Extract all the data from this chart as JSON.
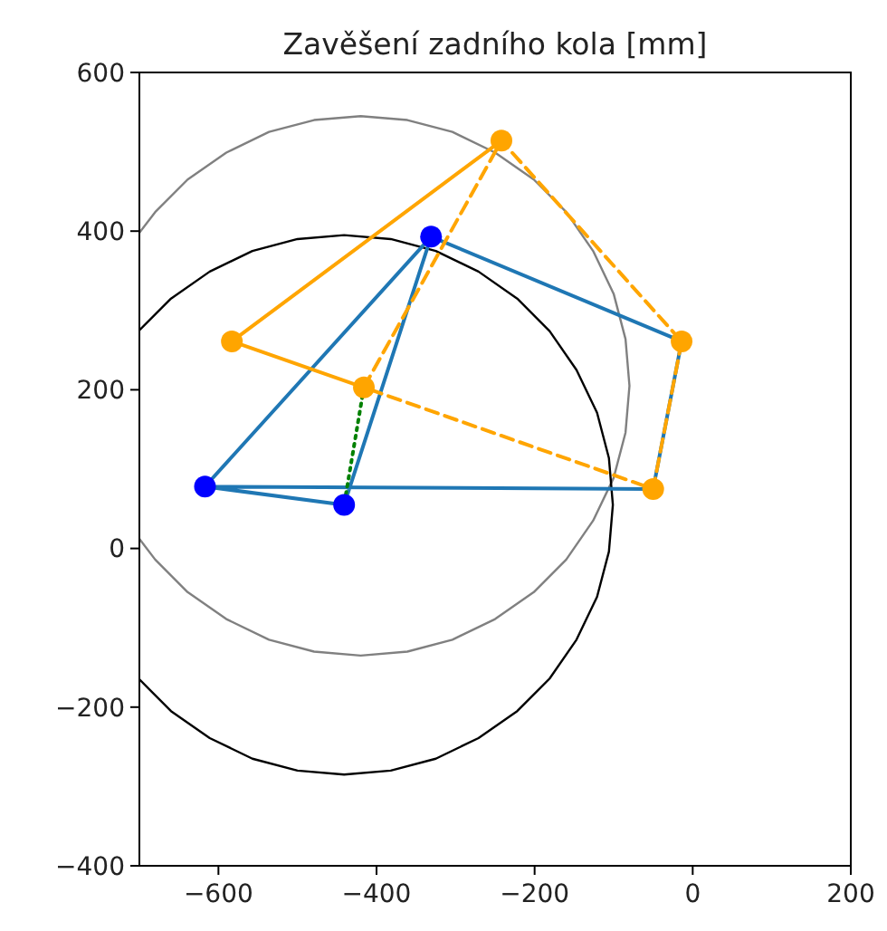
{
  "chart_data": {
    "type": "line",
    "title": "Zavěšení zadního kola [mm]",
    "xlim": [
      -700,
      200
    ],
    "ylim": [
      -400,
      600
    ],
    "xticks": [
      {
        "value": -600,
        "label": "−600"
      },
      {
        "value": -400,
        "label": "−400"
      },
      {
        "value": -200,
        "label": "−200"
      },
      0,
      200
    ],
    "yticks": [
      {
        "value": -400,
        "label": "−400"
      },
      {
        "value": -200,
        "label": "−200"
      },
      0,
      200,
      400,
      600
    ],
    "grid": false,
    "series": [
      {
        "type": "line",
        "color": "#808080",
        "marker": "none",
        "line_style": "solid",
        "x": [
          -700,
          -680,
          -639,
          -590,
          -536,
          -479,
          -420,
          -361,
          -304,
          -250,
          -201,
          -160,
          -126,
          -100,
          -85,
          -80,
          -85,
          -100,
          -126,
          -160,
          -201,
          -250,
          -304,
          -361,
          -420,
          -479,
          -536,
          -590,
          -639,
          -680,
          -700
        ],
        "values": [
          12,
          -14,
          -55,
          -89,
          -115,
          -130,
          -135,
          -130,
          -115,
          -89,
          -55,
          -14,
          35,
          89,
          146,
          205,
          264,
          321,
          375,
          424,
          465,
          499,
          525,
          540,
          545,
          540,
          525,
          499,
          465,
          424,
          398
        ]
      },
      {
        "type": "line",
        "color": "#000000",
        "marker": "none",
        "line_style": "solid",
        "x": [
          -700,
          -660,
          -611,
          -557,
          -500,
          -441,
          -382,
          -325,
          -271,
          -222,
          -181,
          -147,
          -121,
          -106,
          -101,
          -106,
          -121,
          -147,
          -181,
          -222,
          -271,
          -325,
          -382,
          -441,
          -500,
          -557,
          -611,
          -660,
          -700
        ],
        "values": [
          -165,
          -205,
          -239,
          -265,
          -280,
          -285,
          -280,
          -265,
          -239,
          -205,
          -164,
          -115,
          -61,
          -4,
          55,
          114,
          171,
          225,
          274,
          315,
          349,
          375,
          390,
          395,
          390,
          375,
          349,
          315,
          275
        ]
      },
      {
        "type": "line",
        "color": "#1f77b4",
        "marker": "none",
        "line_style": "solid",
        "x": [
          -617,
          -441,
          -331,
          -617,
          -50,
          -14,
          -331
        ],
        "values": [
          78,
          55,
          393,
          78,
          75,
          261,
          393
        ]
      },
      {
        "type": "line",
        "color": "#ffa500",
        "marker": "none",
        "line_style": "solid",
        "x": [
          -242,
          -583,
          -416
        ],
        "values": [
          514,
          261,
          203
        ]
      },
      {
        "color": "#ffa500",
        "marker": "none",
        "line_style": "dashed",
        "x": [
          -416,
          -242,
          -14
        ],
        "values": [
          203,
          514,
          261
        ]
      },
      {
        "color": "#ffa500",
        "marker": "none",
        "line_style": "dashed",
        "x": [
          -14,
          -50,
          -416
        ],
        "values": [
          261,
          75,
          203
        ]
      },
      {
        "type": "line",
        "color": "#008000",
        "marker": "none",
        "line_style": "dotted",
        "x": [
          -416,
          -441
        ],
        "values": [
          203,
          55
        ]
      },
      {
        "type": "scatter",
        "color": "#0000ff",
        "marker": "circle",
        "x": [
          -617,
          -441,
          -331
        ],
        "values": [
          78,
          55,
          393
        ]
      },
      {
        "type": "scatter",
        "color": "#ffa500",
        "marker": "circle",
        "x": [
          -242,
          -583,
          -416,
          -14,
          -50
        ],
        "values": [
          514,
          261,
          203,
          261,
          75
        ]
      }
    ]
  }
}
